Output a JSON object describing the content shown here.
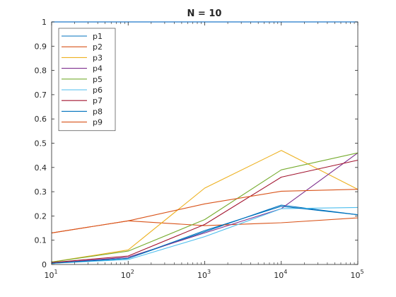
{
  "chart_data": {
    "type": "line",
    "title": "N = 10",
    "xlabel": "",
    "ylabel": "",
    "x_scale": "log",
    "xlim": [
      10,
      100000
    ],
    "ylim": [
      0,
      1
    ],
    "x": [
      10,
      100,
      1000,
      10000,
      100000
    ],
    "x_ticks": [
      {
        "base": "10",
        "exp": "1"
      },
      {
        "base": "10",
        "exp": "2"
      },
      {
        "base": "10",
        "exp": "3"
      },
      {
        "base": "10",
        "exp": "4"
      },
      {
        "base": "10",
        "exp": "5"
      }
    ],
    "y_ticks": [
      "0",
      "0.1",
      "0.2",
      "0.3",
      "0.4",
      "0.5",
      "0.6",
      "0.7",
      "0.8",
      "0.9",
      "1"
    ],
    "y_tick_values": [
      0,
      0.1,
      0.2,
      0.3,
      0.4,
      0.5,
      0.6,
      0.7,
      0.8,
      0.9,
      1
    ],
    "grid": false,
    "legend_position": "top-left",
    "series": [
      {
        "name": "p1",
        "color": "#0072BD",
        "values": [
          0.005,
          0.025,
          0.135,
          0.245,
          0.205
        ]
      },
      {
        "name": "p2",
        "color": "#D95319",
        "values": [
          0.13,
          0.18,
          0.16,
          0.172,
          0.192
        ]
      },
      {
        "name": "p3",
        "color": "#EDB120",
        "values": [
          0.01,
          0.06,
          0.315,
          0.47,
          0.31
        ]
      },
      {
        "name": "p4",
        "color": "#7E2F8E",
        "values": [
          0.005,
          0.03,
          0.13,
          0.23,
          0.46
        ]
      },
      {
        "name": "p5",
        "color": "#77AC30",
        "values": [
          0.01,
          0.055,
          0.185,
          0.39,
          0.46
        ]
      },
      {
        "name": "p6",
        "color": "#4DBEEE",
        "values": [
          0.005,
          0.02,
          0.115,
          0.23,
          0.235
        ]
      },
      {
        "name": "p7",
        "color": "#A2142F",
        "values": [
          0.008,
          0.035,
          0.165,
          0.36,
          0.43
        ]
      },
      {
        "name": "p8",
        "color": "#0072BD",
        "values": [
          0.005,
          0.025,
          0.14,
          0.24,
          0.205
        ]
      },
      {
        "name": "p9",
        "color": "#D95319",
        "values": [
          0.13,
          0.18,
          0.25,
          0.302,
          0.31
        ]
      }
    ]
  }
}
